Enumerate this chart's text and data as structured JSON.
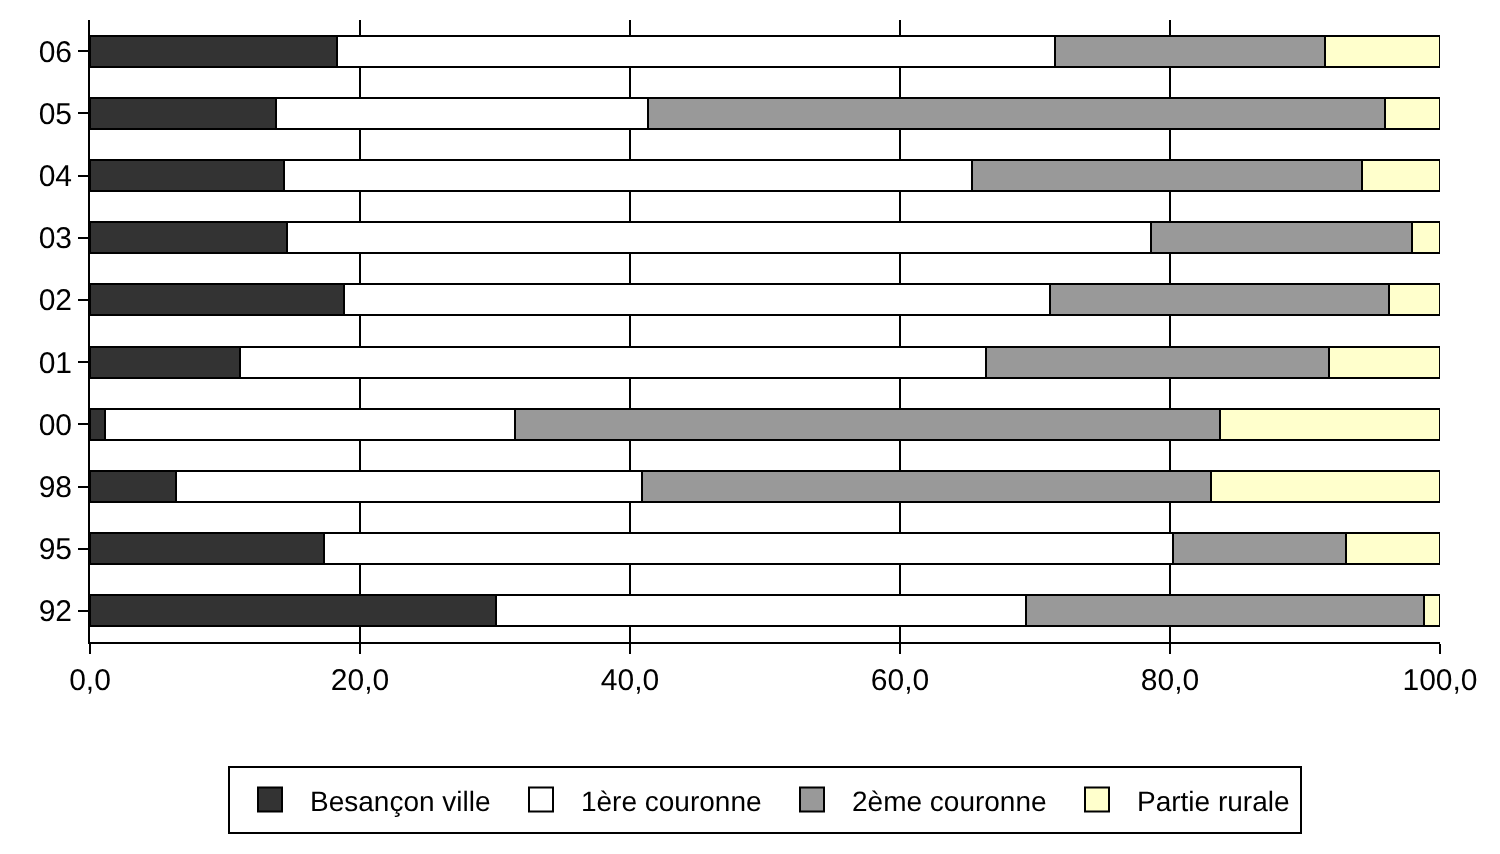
{
  "chart_data": {
    "type": "bar",
    "orientation": "horizontal",
    "stacked": true,
    "categories": [
      "06",
      "05",
      "04",
      "03",
      "02",
      "01",
      "00",
      "98",
      "95",
      "92"
    ],
    "series": [
      {
        "name": "Besançon ville",
        "color": "#333333",
        "values": [
          18.3,
          13.8,
          14.4,
          14.6,
          18.8,
          11.1,
          1.1,
          6.4,
          17.3,
          30.1
        ]
      },
      {
        "name": "1ère couronne",
        "color": "#ffffff",
        "values": [
          53.2,
          27.5,
          50.9,
          64.0,
          52.3,
          55.3,
          30.4,
          34.5,
          62.9,
          39.2
        ]
      },
      {
        "name": "2ème couronne",
        "color": "#999999",
        "values": [
          20.0,
          54.6,
          28.9,
          19.3,
          25.1,
          25.4,
          52.2,
          42.1,
          12.8,
          29.5
        ]
      },
      {
        "name": "Partie rurale",
        "color": "#ffffcc",
        "values": [
          8.5,
          4.1,
          5.8,
          2.1,
          3.8,
          8.2,
          16.3,
          17.0,
          7.0,
          1.2
        ]
      }
    ],
    "xlim": [
      0,
      100
    ],
    "xticks": [
      {
        "value": 0,
        "label": "0,0"
      },
      {
        "value": 20,
        "label": "20,0"
      },
      {
        "value": 40,
        "label": "40,0"
      },
      {
        "value": 60,
        "label": "60,0"
      },
      {
        "value": 80,
        "label": "80,0"
      },
      {
        "value": 100,
        "label": "100,0"
      }
    ],
    "grid": "x",
    "legend": "bottom"
  }
}
